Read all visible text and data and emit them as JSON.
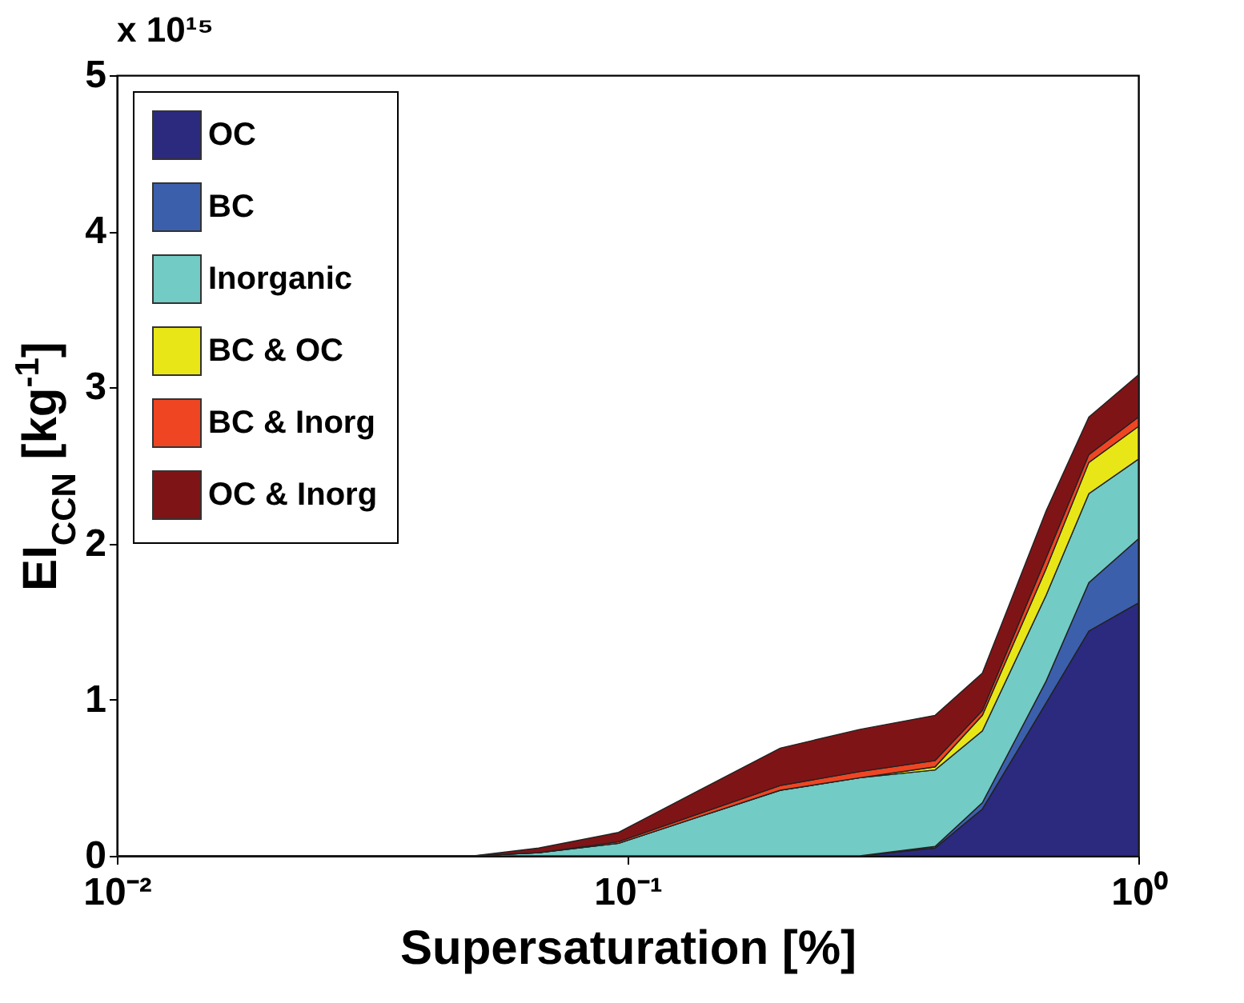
{
  "chart_data": {
    "type": "area",
    "stacked": true,
    "xlabel": "Supersaturation [%]",
    "ylabel": "EI$_{CCN}$ [kg$^{-1}$]",
    "annotations": [
      "x 10¹⁵"
    ],
    "log": "x",
    "xlim": [
      0.01,
      1
    ],
    "xticks": [
      {
        "value": 0.01,
        "label": "10⁻²"
      },
      {
        "value": 0.1,
        "label": "10⁻¹"
      },
      {
        "value": 1,
        "label": "10⁰"
      }
    ],
    "ylim": [
      0,
      5
    ],
    "yticks": [
      0,
      1,
      2,
      3,
      4,
      5
    ],
    "grid": false,
    "legend": "top left",
    "x": [
      0.01,
      0.05,
      0.067,
      0.096,
      0.138,
      0.199,
      0.285,
      0.4,
      0.495,
      0.66,
      0.8,
      1
    ],
    "series": [
      {
        "name": "OC",
        "color": "#2b2a7e",
        "values": [
          0,
          0,
          0,
          0,
          0,
          0,
          0,
          0.05,
          0.3,
          0.98,
          1.44,
          1.62
        ]
      },
      {
        "name": "BC",
        "color": "#3c5fac",
        "values": [
          0,
          0,
          0,
          0,
          0,
          0,
          0,
          0.01,
          0.04,
          0.14,
          0.31,
          0.41
        ]
      },
      {
        "name": "Inorganic",
        "color": "#72cbc4",
        "values": [
          0,
          0,
          0.02,
          0.08,
          0.25,
          0.42,
          0.5,
          0.49,
          0.46,
          0.55,
          0.57,
          0.51
        ]
      },
      {
        "name": "BC & OC",
        "color": "#e8e616",
        "values": [
          0,
          0,
          0,
          0,
          0,
          0,
          0,
          0.02,
          0.1,
          0.17,
          0.2,
          0.21
        ]
      },
      {
        "name": "BC & Inorg",
        "color": "#ef4523",
        "values": [
          0,
          0,
          0,
          0.01,
          0.02,
          0.03,
          0.04,
          0.04,
          0.03,
          0.07,
          0.05,
          0.06
        ]
      },
      {
        "name": "OC & Inorg",
        "color": "#7f1417",
        "values": [
          0,
          0,
          0.03,
          0.06,
          0.15,
          0.24,
          0.27,
          0.29,
          0.24,
          0.3,
          0.24,
          0.27
        ]
      }
    ]
  }
}
